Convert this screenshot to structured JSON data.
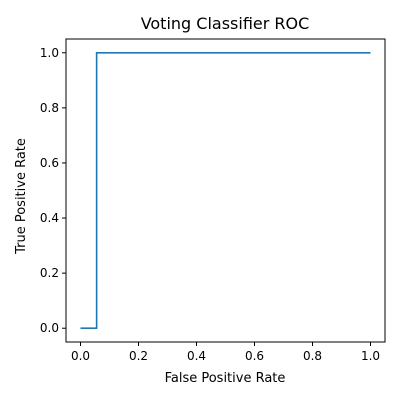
{
  "chart_data": {
    "type": "line",
    "title": "Voting Classifier ROC",
    "xlabel": "False Positive Rate",
    "ylabel": "True Positive Rate",
    "xlim": [
      -0.05,
      1.05
    ],
    "ylim": [
      -0.05,
      1.05
    ],
    "x_ticks": [
      "0.0",
      "0.2",
      "0.4",
      "0.6",
      "0.8",
      "1.0"
    ],
    "y_ticks": [
      "0.0",
      "0.2",
      "0.4",
      "0.6",
      "0.8",
      "1.0"
    ],
    "grid": false,
    "legend": "none",
    "series": [
      {
        "color": "#1f77b4",
        "x": [
          0.0,
          0.0556,
          0.0556,
          1.0
        ],
        "y": [
          0.0,
          0.0,
          1.0,
          1.0
        ]
      }
    ]
  }
}
